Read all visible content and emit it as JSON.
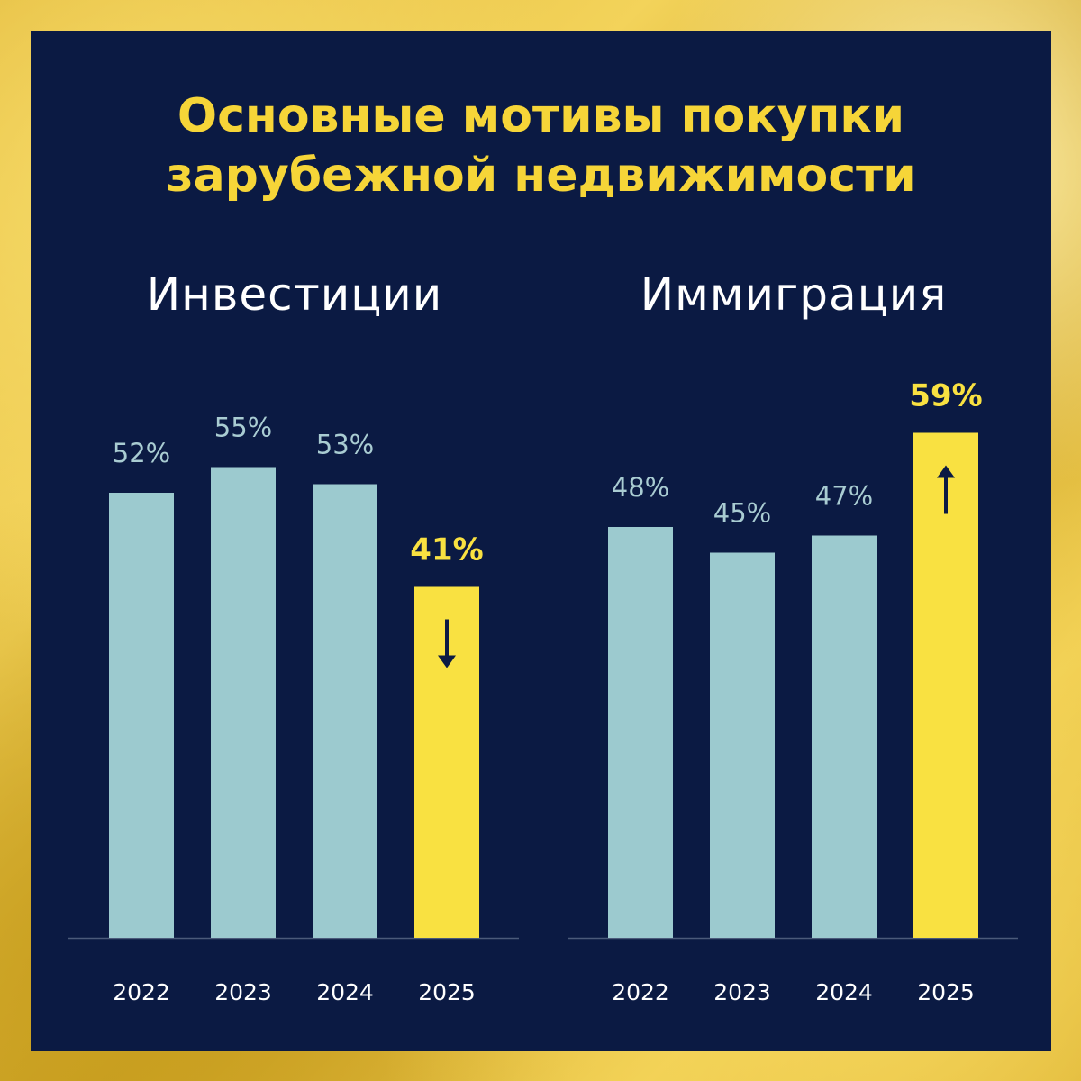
{
  "title": {
    "line1": "Основные мотивы покупки",
    "line2": "зарубежной недвижимости"
  },
  "colors": {
    "background_panel": "#0b1a43",
    "bar_default": "#9ccacf",
    "bar_highlight": "#f9e141",
    "title": "#f6d538",
    "label_default": "#a9ccd2",
    "label_highlight": "#f9e141",
    "arrow": "#0b1a43",
    "axis": "#4b5a7a",
    "year_label": "#ffffff",
    "subtitle": "#ffffff"
  },
  "chart_data": [
    {
      "type": "bar",
      "title": "Инвестиции",
      "categories": [
        "2022",
        "2023",
        "2024",
        "2025"
      ],
      "values": [
        52,
        55,
        53,
        41
      ],
      "value_labels": [
        "52%",
        "55%",
        "53%",
        "41%"
      ],
      "highlight_index": 3,
      "arrow": "down",
      "ylim": [
        0,
        100
      ],
      "grid": false
    },
    {
      "type": "bar",
      "title": "Иммиграция",
      "categories": [
        "2022",
        "2023",
        "2024",
        "2025"
      ],
      "values": [
        48,
        45,
        47,
        59
      ],
      "value_labels": [
        "48%",
        "45%",
        "47%",
        "59%"
      ],
      "highlight_index": 3,
      "arrow": "up",
      "ylim": [
        0,
        100
      ],
      "grid": false
    }
  ]
}
